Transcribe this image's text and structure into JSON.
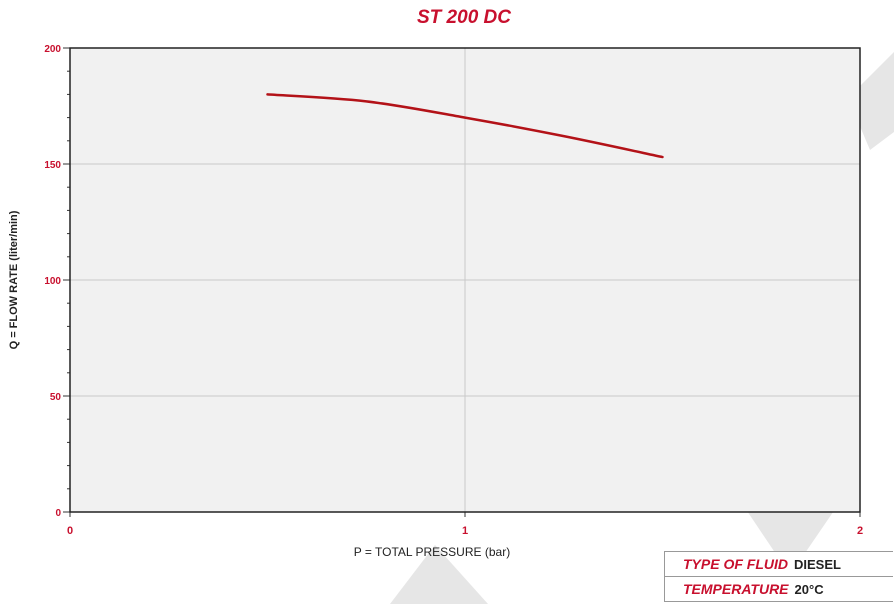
{
  "colors": {
    "accent": "#c8102e",
    "curve": "#b31218",
    "plot_background": "#f1f1f1",
    "grid": "#c9c9c9",
    "watermark": "#e6e6e6"
  },
  "chart_data": {
    "type": "line",
    "title": "ST 200 DC",
    "xlabel": "P = TOTAL PRESSURE (bar)",
    "ylabel": "Q = FLOW RATE (liter/min)",
    "xlim": [
      0,
      2
    ],
    "ylim": [
      0,
      200
    ],
    "x_ticks": [
      0,
      1,
      2
    ],
    "y_ticks": [
      0,
      50,
      100,
      150,
      200
    ],
    "x_tick_labels": [
      "0",
      "1",
      "2"
    ],
    "y_tick_labels": [
      "0",
      "50",
      "100",
      "150",
      "200"
    ],
    "grid": true,
    "series": [
      {
        "x": [
          0.5,
          0.75,
          1.0,
          1.25,
          1.5
        ],
        "y": [
          180,
          177,
          170,
          162,
          153
        ]
      }
    ]
  },
  "info_box": {
    "rows": [
      {
        "key": "TYPE OF FLUID",
        "value": "DIESEL"
      },
      {
        "key": "TEMPERATURE",
        "value": "20°C"
      }
    ]
  }
}
